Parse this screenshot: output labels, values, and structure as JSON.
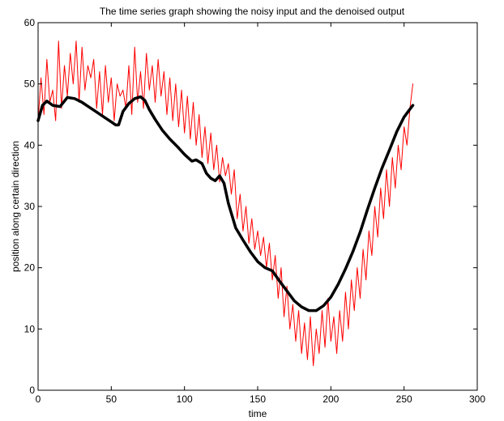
{
  "chart_data": {
    "type": "line",
    "title": "The time series graph showing the noisy input and the denoised output",
    "xlabel": "time",
    "ylabel": "position along certain direction",
    "xlim": [
      0,
      300
    ],
    "ylim": [
      0,
      60
    ],
    "x_ticks": [
      0,
      50,
      100,
      150,
      200,
      250,
      300
    ],
    "y_ticks": [
      0,
      10,
      20,
      30,
      40,
      50,
      60
    ],
    "grid": false,
    "legend": "none",
    "series": [
      {
        "color": "#ff0000",
        "style": "noisy",
        "x": [
          0,
          2,
          4,
          6,
          8,
          10,
          12,
          14,
          16,
          18,
          20,
          22,
          24,
          26,
          28,
          30,
          32,
          34,
          36,
          38,
          40,
          42,
          44,
          46,
          48,
          50,
          52,
          54,
          56,
          58,
          60,
          62,
          64,
          66,
          68,
          70,
          72,
          74,
          76,
          78,
          80,
          82,
          84,
          86,
          88,
          90,
          92,
          94,
          96,
          98,
          100,
          102,
          104,
          106,
          108,
          110,
          112,
          114,
          116,
          118,
          120,
          122,
          124,
          126,
          128,
          130,
          132,
          134,
          136,
          138,
          140,
          142,
          144,
          146,
          148,
          150,
          152,
          154,
          156,
          158,
          160,
          162,
          164,
          166,
          168,
          170,
          172,
          174,
          176,
          178,
          180,
          182,
          184,
          186,
          188,
          190,
          192,
          194,
          196,
          198,
          200,
          202,
          204,
          206,
          208,
          210,
          212,
          214,
          216,
          218,
          220,
          222,
          224,
          226,
          228,
          230,
          232,
          234,
          236,
          238,
          240,
          242,
          244,
          246,
          248,
          250,
          252,
          254,
          256
        ],
        "y": [
          44,
          51,
          45,
          54,
          47,
          49,
          44,
          57,
          46,
          53,
          48,
          55,
          50,
          57,
          47,
          56,
          49,
          53,
          51,
          54,
          46,
          52,
          45,
          53,
          47,
          51,
          44,
          50,
          48,
          49,
          46,
          53,
          45,
          56,
          47,
          52,
          46,
          55,
          49,
          53,
          47,
          54,
          48,
          52,
          45,
          51,
          44,
          50,
          43,
          49,
          42,
          48,
          41,
          47,
          40,
          45,
          38,
          43,
          37,
          42,
          36,
          40,
          34,
          38,
          35,
          37,
          32,
          36,
          28,
          32,
          26,
          30,
          24,
          28,
          23,
          26,
          22,
          25,
          20,
          24,
          18,
          22,
          15,
          20,
          12,
          17,
          10,
          14,
          8,
          13,
          6,
          11,
          5,
          12,
          4,
          10,
          6,
          13,
          7,
          15,
          8,
          12,
          6,
          13,
          8,
          16,
          10,
          18,
          13,
          20,
          15,
          23,
          18,
          26,
          22,
          30,
          25,
          33,
          28,
          36,
          30,
          38,
          33,
          40,
          36,
          43,
          40,
          46,
          50
        ]
      },
      {
        "color": "#000000",
        "style": "smooth",
        "x": [
          0,
          3,
          6,
          10,
          15,
          20,
          25,
          30,
          35,
          40,
          45,
          50,
          53,
          55,
          58,
          62,
          66,
          70,
          73,
          76,
          80,
          85,
          90,
          95,
          100,
          105,
          108,
          112,
          115,
          118,
          121,
          124,
          127,
          130,
          135,
          140,
          145,
          150,
          155,
          160,
          165,
          170,
          175,
          180,
          185,
          190,
          195,
          200,
          205,
          210,
          215,
          220,
          225,
          230,
          235,
          240,
          245,
          250,
          255,
          256
        ],
        "y": [
          44,
          46.5,
          47.2,
          46.5,
          46.3,
          47.8,
          47.6,
          47,
          46.2,
          45.4,
          44.6,
          43.8,
          43.3,
          43.3,
          45.5,
          46.8,
          47.6,
          47.9,
          47.3,
          45.8,
          44.2,
          42.4,
          41,
          39.8,
          38.5,
          37.4,
          37.6,
          37,
          35.4,
          34.6,
          34.2,
          35,
          33.8,
          30.5,
          26.5,
          24.5,
          22.6,
          21,
          20,
          19.5,
          17.8,
          16.2,
          14.6,
          13.6,
          13,
          13,
          13.8,
          15.2,
          17.3,
          19.8,
          22.6,
          25.8,
          29.5,
          33,
          36.3,
          39.2,
          42.2,
          44.6,
          46.2,
          46.5
        ]
      }
    ]
  }
}
